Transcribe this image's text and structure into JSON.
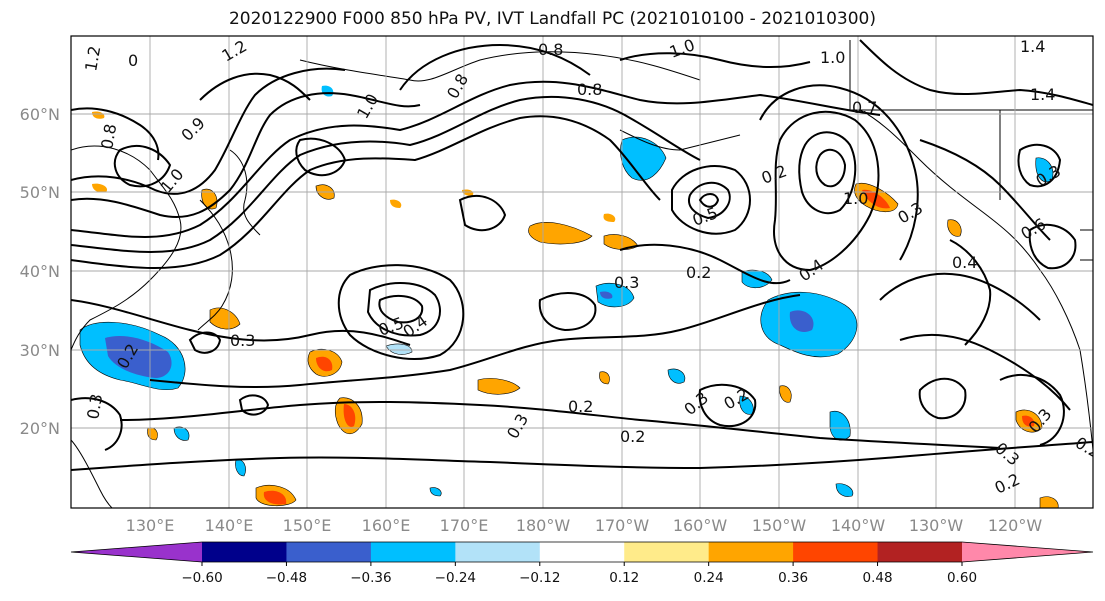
{
  "title": "2020122900 F000 850 hPa PV, IVT Landfall PC (2021010100 - 2021010300)",
  "lat_labels": [
    "60°N",
    "50°N",
    "40°N",
    "30°N",
    "20°N"
  ],
  "lon_labels": [
    "130°E",
    "140°E",
    "150°E",
    "160°E",
    "170°E",
    "180°W",
    "170°W",
    "160°W",
    "150°W",
    "140°W",
    "130°W",
    "120°W"
  ],
  "colorbar": {
    "colors": [
      "#9932cc",
      "#00008b",
      "#3a5fcd",
      "#00bfff",
      "#b2e2f8",
      "#ffffff",
      "#ffeb8a",
      "#ffa500",
      "#ff4500",
      "#b22222",
      "#ff88aa"
    ],
    "tick_labels": [
      "−0.60",
      "−0.48",
      "−0.36",
      "−0.24",
      "−0.12",
      "0.12",
      "0.24",
      "0.36",
      "0.48",
      "0.60"
    ]
  },
  "contour_labels": [
    "1.2",
    "0",
    "1.2",
    "1.0",
    "0.8",
    "0.8",
    "1.0",
    "0.8",
    "0.9",
    "1.0",
    "1.4",
    "0.7",
    "1.4",
    "1.0",
    "0.8",
    "0.5",
    "0.5",
    "0.4",
    "0.2",
    "1.0",
    "0.3",
    "0.6",
    "0.4",
    "0.3",
    "0.2",
    "0.3",
    "0.2",
    "0.3",
    "0.4",
    "0.3",
    "0.2",
    "0.2",
    "0.3",
    "0.2",
    "0.3",
    "0.3",
    "0.2",
    "0.2",
    "0.3"
  ]
}
